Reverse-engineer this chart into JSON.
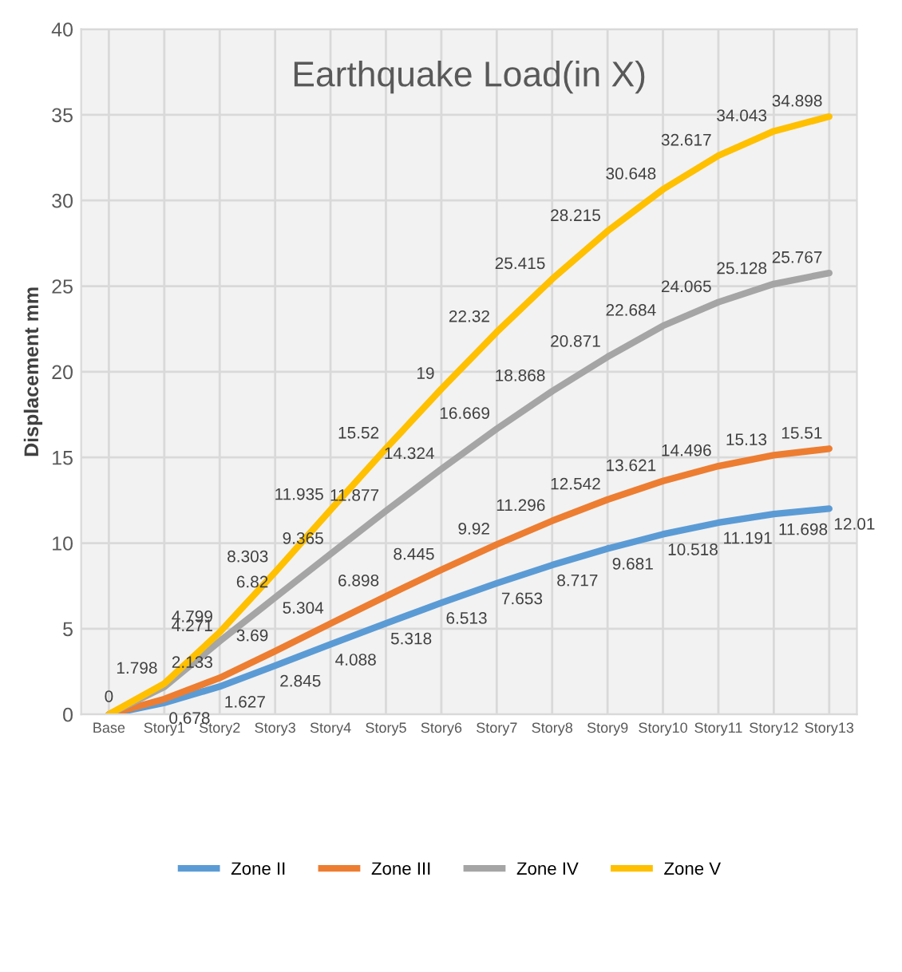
{
  "chart_data": {
    "type": "line",
    "title": "Earthquake Load(in X)",
    "ylabel": "Displacement mm",
    "categories": [
      "Base",
      "Story1",
      "Story2",
      "Story3",
      "Story4",
      "Story5",
      "Story6",
      "Story7",
      "Story8",
      "Story9",
      "Story10",
      "Story11",
      "Story12",
      "Story13"
    ],
    "series": [
      {
        "name": "Zone II",
        "color": "#5b9bd5",
        "values": [
          0,
          0.678,
          1.627,
          2.845,
          4.088,
          5.318,
          6.513,
          7.653,
          8.717,
          9.681,
          10.518,
          11.191,
          11.698,
          12.01
        ],
        "value_labels": [
          "0",
          "0.678",
          "1.627",
          "2.845",
          "4.088",
          "5.318",
          "6.513",
          "7.653",
          "8.717",
          "9.681",
          "10.518",
          "11.191",
          "11.698",
          "12.01"
        ]
      },
      {
        "name": "Zone III",
        "color": "#ed7d31",
        "values": [
          0,
          0.9,
          2.133,
          3.69,
          5.304,
          6.898,
          8.445,
          9.92,
          11.296,
          12.542,
          13.621,
          14.496,
          15.13,
          15.51
        ],
        "value_labels": [
          null,
          null,
          "2.133",
          "3.69",
          "5.304",
          "6.898",
          "8.445",
          "9.92",
          "11.296",
          "12.542",
          "13.621",
          "14.496",
          "15.13",
          "15.51"
        ]
      },
      {
        "name": "Zone IV",
        "color": "#a5a5a5",
        "values": [
          0,
          1.6,
          4.271,
          6.82,
          9.365,
          11.877,
          14.324,
          16.669,
          18.868,
          20.871,
          22.684,
          24.065,
          25.128,
          25.767
        ],
        "value_labels": [
          null,
          null,
          "4.271",
          "6.82",
          "9.365",
          "11.877",
          "14.324",
          "16.669",
          "18.868",
          "20.871",
          "22.684",
          "24.065",
          "25.128",
          "25.767"
        ]
      },
      {
        "name": "Zone V",
        "color": "#ffc000",
        "values": [
          0,
          1.798,
          4.799,
          8.303,
          11.935,
          15.52,
          19,
          22.32,
          25.415,
          28.215,
          30.648,
          32.617,
          34.043,
          34.898
        ],
        "value_labels": [
          null,
          "1.798",
          "4.799",
          "8.303",
          "11.935",
          "15.52",
          "19",
          "22.32",
          "25.415",
          "28.215",
          "30.648",
          "32.617",
          "34.043",
          "34.898"
        ]
      }
    ],
    "ylim": [
      0,
      40
    ],
    "yticks": [
      0,
      5,
      10,
      15,
      20,
      25,
      30,
      35,
      40
    ],
    "grid": true,
    "legend": "bottom",
    "marker": "none",
    "line_style": "solid"
  }
}
